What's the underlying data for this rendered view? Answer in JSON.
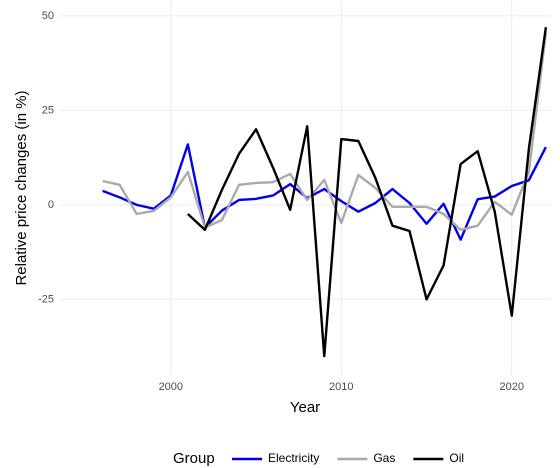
{
  "chart_data": {
    "type": "line",
    "x_label": "Year",
    "y_label": "Relative price changes (in %)",
    "x": [
      1996,
      1997,
      1998,
      1999,
      2000,
      2001,
      2002,
      2003,
      2004,
      2005,
      2006,
      2007,
      2008,
      2009,
      2010,
      2011,
      2012,
      2013,
      2014,
      2015,
      2016,
      2017,
      2018,
      2019,
      2020,
      2021,
      2022
    ],
    "series": [
      {
        "name": "Electricity",
        "color": "#0000ee",
        "values": [
          3.7,
          2,
          0,
          -1,
          2.5,
          16,
          -6,
          -1.5,
          1.3,
          1.6,
          2.5,
          5.5,
          1.8,
          4.2,
          1,
          -1.8,
          0.5,
          4.2,
          0.5,
          -5,
          0.3,
          -9.2,
          1.5,
          2.2,
          5,
          6.5,
          15.3
        ]
      },
      {
        "name": "Gas",
        "color": "#aaaaaa",
        "values": [
          6.3,
          5.3,
          -2.4,
          -1.6,
          2,
          8.7,
          -6,
          -4,
          5.3,
          5.8,
          6,
          8.2,
          1.3,
          6.6,
          -4.8,
          7.9,
          4.5,
          -0.5,
          -0.5,
          -0.5,
          -2.4,
          -6.6,
          -5.5,
          0.8,
          -2.6,
          8.7,
          45.6
        ]
      },
      {
        "name": "Oil",
        "color": "#000000",
        "values": [
          null,
          null,
          null,
          null,
          null,
          -2.4,
          -6.6,
          4,
          13.5,
          20,
          9.8,
          -1.3,
          20.8,
          -40,
          17.4,
          16.9,
          7.1,
          -5.5,
          -6.9,
          -25,
          -16,
          10.8,
          14.2,
          -1.8,
          -29.3,
          14.8,
          47
        ]
      }
    ],
    "legend_title": "Group",
    "legend_position": "bottom",
    "xlim": [
      1993.5,
      2022.3
    ],
    "xticks": [
      2000,
      2010,
      2020
    ],
    "ylim": [
      -45,
      54.2
    ],
    "yticks": [
      -25,
      0,
      25,
      50
    ],
    "grid": true
  }
}
